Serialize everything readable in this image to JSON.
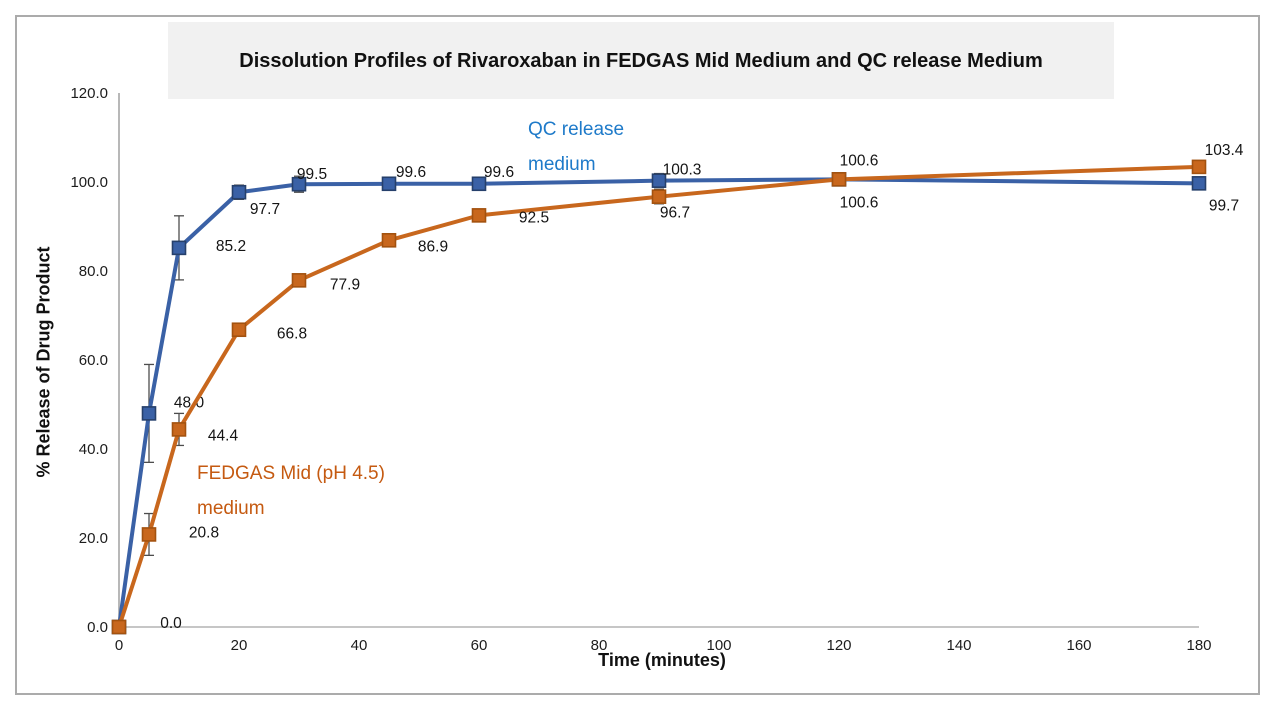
{
  "chart_data": {
    "type": "line",
    "title": "Dissolution Profiles of Rivaroxaban in FEDGAS Mid Medium and QC release Medium",
    "xlabel": "Time (minutes)",
    "ylabel": "% Release of Drug Product",
    "x": [
      0,
      5,
      10,
      20,
      30,
      45,
      60,
      90,
      120,
      180
    ],
    "xlim": [
      0,
      180
    ],
    "ylim": [
      0,
      120
    ],
    "grid": false,
    "x_ticks": [
      "0",
      "20",
      "40",
      "60",
      "80",
      "100",
      "120",
      "140",
      "160",
      "180"
    ],
    "y_ticks": [
      "0.0",
      "20.0",
      "40.0",
      "60.0",
      "80.0",
      "100.0",
      "120.0"
    ],
    "series": [
      {
        "name": "QC release medium",
        "color": "#3a61a6",
        "marker_border": "#26406b",
        "values": [
          0.0,
          48.0,
          85.2,
          97.7,
          99.5,
          99.6,
          99.6,
          100.3,
          100.6,
          99.7
        ],
        "errors": [
          0,
          11,
          7.2,
          1.6,
          1.8,
          1.1,
          1.1,
          1.6,
          0,
          0
        ],
        "label_offsets": [
          null,
          [
            26,
            -11
          ],
          [
            38,
            -2
          ],
          [
            12,
            17
          ],
          [
            -1,
            -10
          ],
          [
            8,
            -12
          ],
          [
            6,
            -12
          ],
          [
            9,
            -11
          ],
          [
            6,
            23
          ],
          [
            11,
            22
          ]
        ]
      },
      {
        "name": "FEDGAS Mid (pH 4.5) medium",
        "color": "#c8671d",
        "marker_border": "#a3520f",
        "values": [
          0.0,
          20.8,
          44.4,
          66.8,
          77.9,
          86.9,
          92.5,
          96.7,
          100.6,
          103.4
        ],
        "errors": [
          0,
          4.7,
          3.6,
          0,
          0,
          0,
          0,
          1.6,
          0,
          0
        ],
        "label_offsets": [
          [
            38,
            -4
          ],
          [
            41,
            -2
          ],
          [
            30,
            6
          ],
          [
            39,
            4
          ],
          [
            32,
            4
          ],
          [
            30,
            6
          ],
          [
            41,
            2
          ],
          [
            2,
            16
          ],
          [
            6,
            -19
          ],
          [
            11,
            -17
          ]
        ]
      }
    ],
    "annotations": [
      {
        "lines": [
          "QC release",
          "medium"
        ],
        "color": "#1e7ac9"
      },
      {
        "lines": [
          "FEDGAS Mid (pH 4.5)",
          "medium"
        ],
        "color": "#c55a11"
      }
    ],
    "label_decimals": 1
  }
}
